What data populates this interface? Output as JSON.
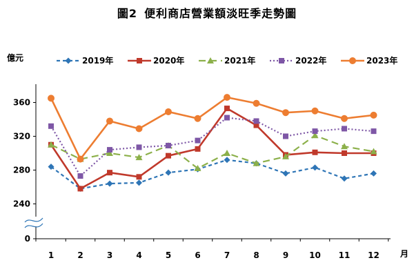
{
  "title_number": "圖2",
  "title_text": "便利商店營業額淡旺季走勢圖",
  "chart_data": {
    "type": "line",
    "title": "圖2 便利商店營業額淡旺季走勢圖",
    "ylabel": "億元",
    "xlabel": "月",
    "categories": [
      "1",
      "2",
      "3",
      "4",
      "5",
      "6",
      "7",
      "8",
      "9",
      "10",
      "11",
      "12"
    ],
    "y_ticks": [
      "0",
      "240",
      "280",
      "320",
      "360"
    ],
    "ylim_visible": [
      220,
      380
    ],
    "axis_break": true,
    "grid": false,
    "legend_position": "top",
    "series": [
      {
        "name": "2019年",
        "color": "#2e75b6",
        "dash": "dashed",
        "marker": "diamond",
        "values": [
          284,
          258,
          264,
          265,
          277,
          281,
          292,
          288,
          276,
          283,
          270,
          276
        ]
      },
      {
        "name": "2020年",
        "color": "#c0392b",
        "dash": "solid",
        "marker": "square",
        "values": [
          310,
          258,
          277,
          272,
          297,
          305,
          353,
          333,
          298,
          301,
          300,
          300
        ]
      },
      {
        "name": "2021年",
        "color": "#8cb04a",
        "dash": "longdash",
        "marker": "triangle",
        "values": [
          310,
          293,
          300,
          295,
          309,
          282,
          300,
          288,
          296,
          321,
          308,
          302
        ]
      },
      {
        "name": "2022年",
        "color": "#7e57a6",
        "dash": "dotted",
        "marker": "square",
        "values": [
          332,
          273,
          304,
          307,
          309,
          315,
          342,
          338,
          320,
          326,
          329,
          326
        ]
      },
      {
        "name": "2023年",
        "color": "#ed7d31",
        "dash": "solid",
        "marker": "circle",
        "values": [
          365,
          293,
          338,
          329,
          349,
          341,
          366,
          359,
          348,
          350,
          341,
          345
        ]
      }
    ]
  }
}
